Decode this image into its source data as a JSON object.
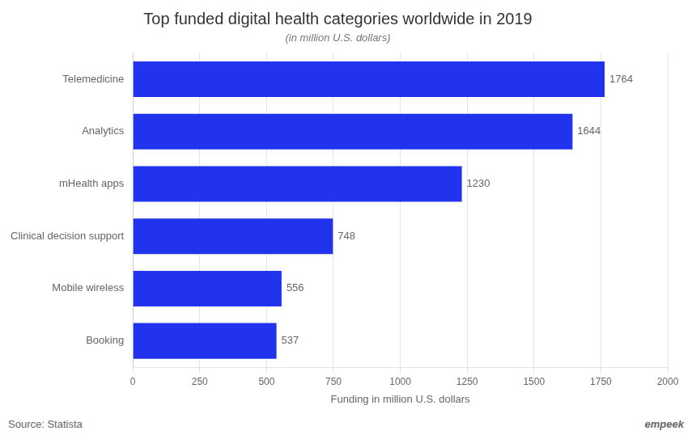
{
  "chart_data": {
    "type": "bar",
    "orientation": "horizontal",
    "title": "Top funded digital health categories worldwide in 2019",
    "subtitle": "(in million U.S. dollars)",
    "xlabel": "Funding in million U.S. dollars",
    "categories": [
      "Booking",
      "Mobile wireless",
      "Clinical decision support",
      "mHealth apps",
      "Analytics",
      "Telemedicine"
    ],
    "values": [
      537,
      556,
      748,
      1230,
      1644,
      1764
    ],
    "color": "#2233EE",
    "xlim": [
      0,
      2000
    ],
    "xticks": [
      0,
      250,
      500,
      750,
      1000,
      1250,
      1500,
      1750,
      2000
    ],
    "grid": true,
    "data_labels": true,
    "annotations": [
      "Source: Statista",
      "empeek"
    ]
  }
}
